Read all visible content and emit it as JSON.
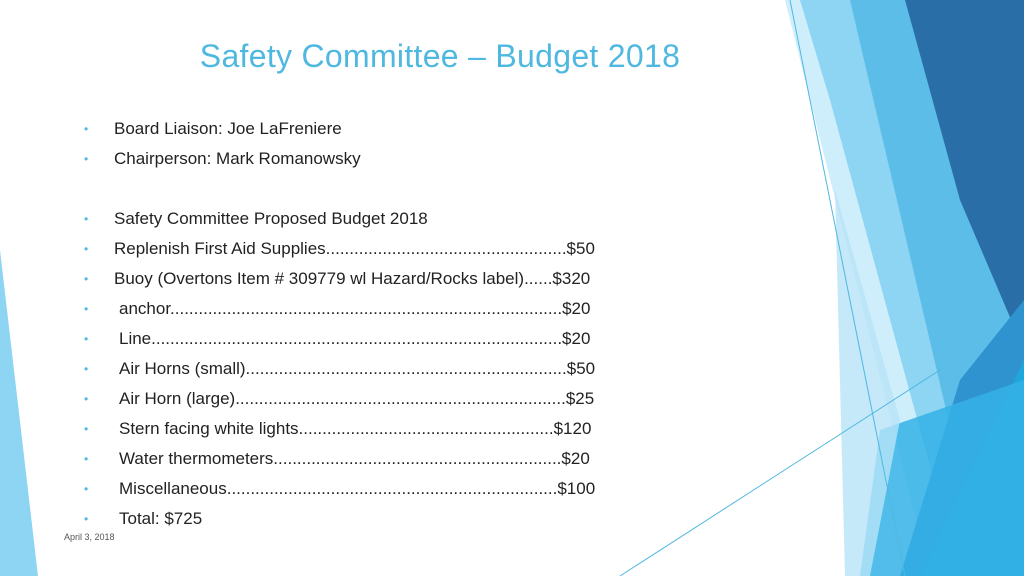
{
  "slide": {
    "title": "Safety Committee – Budget 2018",
    "items": [
      "Board Liaison:  Joe LaFreniere",
      "Chairperson:  Mark Romanowsky",
      "Safety Committee Proposed Budget 2018",
      "Replenish First Aid Supplies...................................................$50",
      "Buoy  (Overtons Item # 309779 wl Hazard/Rocks label)......$320",
      "anchor...................................................................................$20",
      "Line.......................................................................................$20",
      "Air Horns (small)....................................................................$50",
      "Air Horn (large)......................................................................$25",
      "Stern facing white lights......................................................$120",
      "Water thermometers.............................................................$20",
      "Miscellaneous......................................................................$100",
      "Total: $725"
    ],
    "bullet_symbol": "•",
    "date": "April 3, 2018"
  },
  "colors": {
    "title": "#4fb8e0",
    "accent_dark": "#2a6ea8",
    "accent_mid": "#3aa7e0",
    "accent_light": "#8ed4f3",
    "text": "#222222"
  }
}
